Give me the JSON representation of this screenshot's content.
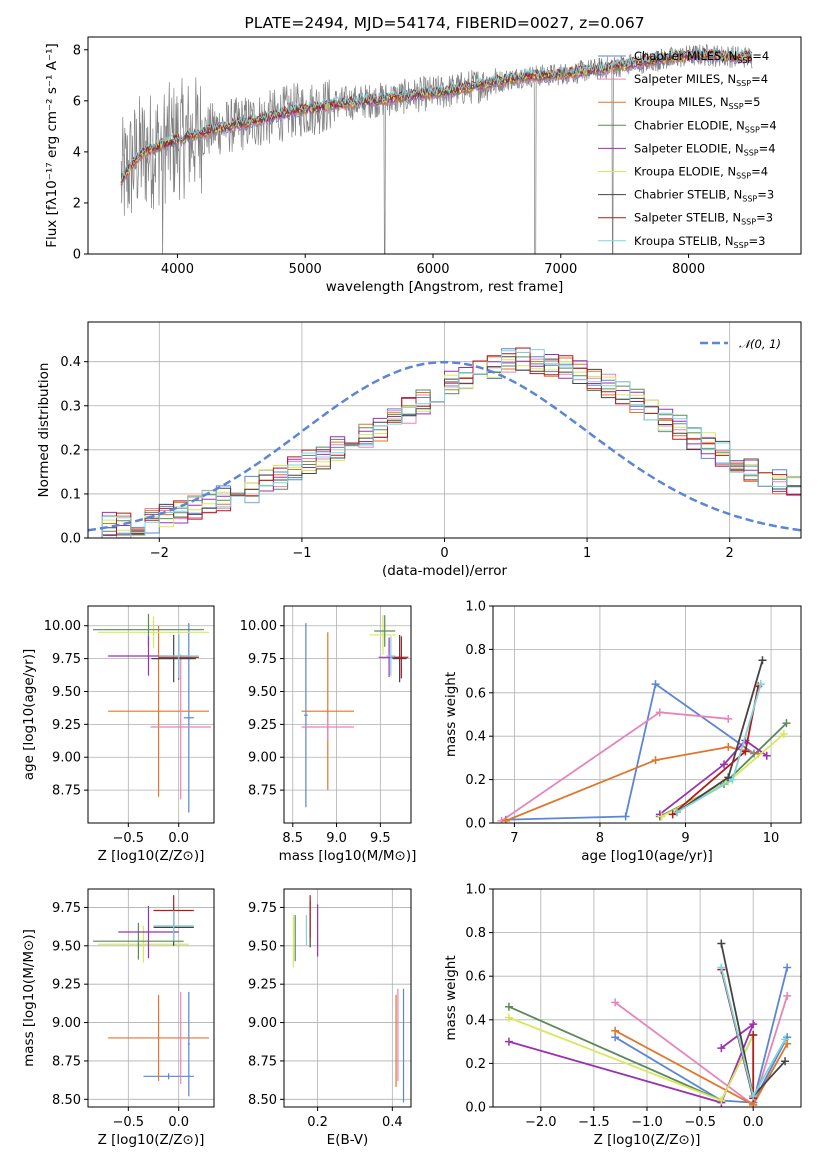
{
  "chart_data": [
    {
      "type": "line",
      "panel": "spectrum",
      "title": "PLATE=2494, MJD=54174, FIBERID=0027, z=0.067",
      "xlabel": "wavelength [Angstrom, rest frame]",
      "ylabel": "Flux [fλ10⁻¹⁷ erg cm⁻² s⁻¹ A⁻¹]",
      "xlim": [
        3300,
        8880
      ],
      "ylim": [
        0,
        8.5
      ],
      "xticks": [
        4000,
        5000,
        6000,
        7000,
        8000
      ],
      "yticks": [
        0,
        2,
        4,
        6,
        8
      ],
      "grid": false,
      "legend_position": "top-right",
      "data_color": "#808080",
      "continuum": {
        "x": [
          3560,
          3700,
          3900,
          4100,
          4300,
          4500,
          4700,
          4900,
          5100,
          5300,
          5500,
          5700,
          5900,
          6100,
          6300,
          6500,
          6700,
          6900,
          7100,
          7300,
          7500,
          7700,
          7900,
          8100,
          8300,
          8500
        ],
        "y": [
          2.9,
          3.9,
          4.3,
          4.6,
          4.9,
          5.1,
          5.3,
          5.6,
          5.75,
          5.9,
          6.0,
          6.1,
          6.25,
          6.35,
          6.55,
          6.75,
          6.95,
          7.0,
          7.1,
          7.25,
          7.4,
          7.55,
          7.7,
          7.8,
          7.75,
          7.7
        ]
      },
      "series": [
        {
          "name": "Chabrier MILES, N_SSP=4",
          "label_main": "Chabrier MILES, N",
          "label_sub": "SSP",
          "label_tail": "=4",
          "color": "#5b86d6"
        },
        {
          "name": "Salpeter MILES, N_SSP=4",
          "label_main": "Salpeter MILES, N",
          "label_sub": "SSP",
          "label_tail": "=4",
          "color": "#e685b8"
        },
        {
          "name": "Kroupa MILES, N_SSP=5",
          "label_main": "Kroupa MILES, N",
          "label_sub": "SSP",
          "label_tail": "=5",
          "color": "#e0762a"
        },
        {
          "name": "Chabrier ELODIE, N_SSP=4",
          "label_main": "Chabrier ELODIE, N",
          "label_sub": "SSP",
          "label_tail": "=4",
          "color": "#5a8a5a"
        },
        {
          "name": "Salpeter ELODIE, N_SSP=4",
          "label_main": "Salpeter ELODIE, N",
          "label_sub": "SSP",
          "label_tail": "=4",
          "color": "#9b30b0"
        },
        {
          "name": "Kroupa ELODIE, N_SSP=4",
          "label_main": "Kroupa ELODIE, N",
          "label_sub": "SSP",
          "label_tail": "=4",
          "color": "#d8e85a"
        },
        {
          "name": "Chabrier STELIB, N_SSP=3",
          "label_main": "Chabrier STELIB, N",
          "label_sub": "SSP",
          "label_tail": "=3",
          "color": "#444444"
        },
        {
          "name": "Salpeter STELIB, N_SSP=3",
          "label_main": "Salpeter STELIB, N",
          "label_sub": "SSP",
          "label_tail": "=3",
          "color": "#b01c1c"
        },
        {
          "name": "Kroupa STELIB, N_SSP=3",
          "label_main": "Kroupa STELIB, N",
          "label_sub": "SSP",
          "label_tail": "=3",
          "color": "#7fd4dc"
        }
      ]
    },
    {
      "type": "histogram",
      "panel": "residuals",
      "xlabel": "(data-model)/error",
      "ylabel": "Normed distribution",
      "xlim": [
        -2.5,
        2.5
      ],
      "ylim": [
        0,
        0.49
      ],
      "xticks": [
        -2,
        -1,
        0,
        1,
        2
      ],
      "yticks": [
        0.0,
        0.1,
        0.2,
        0.3,
        0.4
      ],
      "grid": true,
      "legend_position": "top-right",
      "reference_curve": {
        "name": "N(0,1)",
        "label": "𝒩(0, 1)",
        "color": "#5b86d6",
        "style": "dashed"
      },
      "bin_edges_start": -2.5,
      "bin_width": 0.1,
      "base_values": [
        0.025,
        0.03,
        0.03,
        0.035,
        0.04,
        0.05,
        0.06,
        0.07,
        0.08,
        0.09,
        0.1,
        0.11,
        0.125,
        0.14,
        0.155,
        0.17,
        0.185,
        0.2,
        0.215,
        0.235,
        0.25,
        0.27,
        0.29,
        0.31,
        0.33,
        0.35,
        0.365,
        0.38,
        0.39,
        0.4,
        0.405,
        0.4,
        0.395,
        0.385,
        0.375,
        0.36,
        0.345,
        0.33,
        0.31,
        0.29,
        0.27,
        0.25,
        0.23,
        0.21,
        0.19,
        0.17,
        0.155,
        0.14,
        0.125,
        0.11
      ]
    },
    {
      "type": "errorbar",
      "panel": "age-vs-Z",
      "xlabel": "Z [log10(Z/Z⊙)]",
      "ylabel": "age [log10(age/yr)]",
      "xlim": [
        -0.9,
        0.35
      ],
      "ylim": [
        8.5,
        10.15
      ],
      "xticks": [
        -0.5,
        0.0
      ],
      "yticks": [
        8.75,
        9.0,
        9.25,
        9.5,
        9.75,
        10.0
      ],
      "grid": true,
      "points": [
        {
          "series": "Chabrier MILES",
          "x": 0.1,
          "xerr": 0.05,
          "y": 9.3,
          "yerr": 0.72
        },
        {
          "series": "Kroupa MILES",
          "x": -0.2,
          "xerr": 0.5,
          "y": 9.35,
          "yerr": 0.65
        },
        {
          "series": "Salpeter MILES",
          "x": 0.02,
          "xerr": 0.3,
          "y": 9.23,
          "yerr": 0.55
        },
        {
          "series": "Kroupa ELODIE",
          "x": -0.25,
          "xerr": 0.55,
          "y": 9.95,
          "yerr": 0.12
        },
        {
          "series": "Chabrier ELODIE",
          "x": -0.3,
          "xerr": 0.55,
          "y": 9.97,
          "yerr": 0.12
        },
        {
          "series": "Salpeter ELODIE",
          "x": -0.3,
          "xerr": 0.4,
          "y": 9.77,
          "yerr": 0.15
        },
        {
          "series": "Chabrier STELIB",
          "x": -0.05,
          "xerr": 0.22,
          "y": 9.75,
          "yerr": 0.18
        },
        {
          "series": "Salpeter STELIB",
          "x": 0.0,
          "xerr": 0.2,
          "y": 9.76,
          "yerr": 0.17
        },
        {
          "series": "Kroupa STELIB",
          "x": 0.0,
          "xerr": 0.2,
          "y": 9.77,
          "yerr": 0.17
        }
      ]
    },
    {
      "type": "errorbar",
      "panel": "age-vs-mass",
      "xlabel": "mass [log10(M/M⊙)]",
      "ylabel": "",
      "xlim": [
        8.4,
        9.85
      ],
      "ylim": [
        8.5,
        10.15
      ],
      "xticks": [
        8.5,
        9.0,
        9.5
      ],
      "yticks": [
        8.75,
        9.0,
        9.25,
        9.5,
        9.75,
        10.0
      ],
      "grid": true,
      "points": [
        {
          "series": "Chabrier MILES",
          "x": 8.65,
          "xerr": 0.02,
          "y": 9.32,
          "yerr": 0.7
        },
        {
          "series": "Kroupa MILES",
          "x": 8.9,
          "xerr": 0.3,
          "y": 9.35,
          "yerr": 0.6
        },
        {
          "series": "Salpeter MILES",
          "x": 8.9,
          "xerr": 0.3,
          "y": 9.23,
          "yerr": 0.1
        },
        {
          "series": "Kroupa ELODIE",
          "x": 9.53,
          "xerr": 0.15,
          "y": 9.93,
          "yerr": 0.15
        },
        {
          "series": "Chabrier ELODIE",
          "x": 9.55,
          "xerr": 0.12,
          "y": 9.96,
          "yerr": 0.12
        },
        {
          "series": "Salpeter ELODIE",
          "x": 9.6,
          "xerr": 0.12,
          "y": 9.76,
          "yerr": 0.15
        },
        {
          "series": "Chabrier STELIB",
          "x": 9.72,
          "xerr": 0.08,
          "y": 9.75,
          "yerr": 0.18
        },
        {
          "series": "Salpeter STELIB",
          "x": 9.74,
          "xerr": 0.08,
          "y": 9.76,
          "yerr": 0.16
        },
        {
          "series": "Kroupa STELIB",
          "x": 9.62,
          "xerr": 0.05,
          "y": 9.77,
          "yerr": 0.15
        }
      ]
    },
    {
      "type": "line",
      "panel": "mass-weight-vs-age",
      "xlabel": "age [log10(age/yr)]",
      "ylabel": "mass weight",
      "xlim": [
        6.75,
        10.35
      ],
      "ylim": [
        0,
        1.0
      ],
      "xticks": [
        7,
        8,
        9,
        10
      ],
      "yticks": [
        0.0,
        0.2,
        0.4,
        0.6,
        0.8,
        1.0
      ],
      "grid": true,
      "marker": "+",
      "series": [
        {
          "name": "Chabrier MILES",
          "x": [
            6.9,
            8.3,
            8.65,
            9.8
          ],
          "y": [
            0.015,
            0.03,
            0.64,
            0.32
          ]
        },
        {
          "name": "Salpeter MILES",
          "x": [
            6.85,
            8.7,
            9.5
          ],
          "y": [
            0.01,
            0.51,
            0.48
          ]
        },
        {
          "name": "Kroupa MILES",
          "x": [
            6.9,
            8.65,
            9.5,
            9.85
          ],
          "y": [
            0.01,
            0.29,
            0.35,
            0.32
          ]
        },
        {
          "name": "Chabrier ELODIE",
          "x": [
            8.7,
            9.45,
            10.18
          ],
          "y": [
            0.03,
            0.18,
            0.46
          ]
        },
        {
          "name": "Salpeter ELODIE",
          "x": [
            8.7,
            9.45,
            9.7,
            9.95
          ],
          "y": [
            0.04,
            0.27,
            0.38,
            0.31
          ]
        },
        {
          "name": "Kroupa ELODIE",
          "x": [
            8.72,
            9.5,
            10.15
          ],
          "y": [
            0.03,
            0.19,
            0.41
          ]
        },
        {
          "name": "Chabrier STELIB",
          "x": [
            8.9,
            9.5,
            9.9
          ],
          "y": [
            0.05,
            0.21,
            0.75
          ]
        },
        {
          "name": "Salpeter STELIB",
          "x": [
            8.85,
            9.7,
            9.85
          ],
          "y": [
            0.04,
            0.33,
            0.63
          ]
        },
        {
          "name": "Kroupa STELIB",
          "x": [
            8.9,
            9.55,
            9.88
          ],
          "y": [
            0.05,
            0.2,
            0.64
          ]
        }
      ]
    },
    {
      "type": "errorbar",
      "panel": "mass-vs-Z",
      "xlabel": "Z [log10(Z/Z⊙)]",
      "ylabel": "mass [log10(M/M⊙)]",
      "xlim": [
        -0.9,
        0.35
      ],
      "ylim": [
        8.45,
        9.87
      ],
      "xticks": [
        -0.5,
        0.0
      ],
      "yticks": [
        8.5,
        8.75,
        9.0,
        9.25,
        9.5,
        9.75
      ],
      "grid": true,
      "points": [
        {
          "series": "Chabrier MILES",
          "x": -0.1,
          "xerr": 0.25,
          "y": 8.65,
          "yerr": 0.02
        },
        {
          "series": "Chabrier MILES",
          "x": 0.1,
          "xerr": 0.01,
          "y": 8.86,
          "yerr": 0.34
        },
        {
          "series": "Kroupa MILES",
          "x": -0.2,
          "xerr": 0.5,
          "y": 8.9,
          "yerr": 0.28
        },
        {
          "series": "Salpeter MILES",
          "x": 0.02,
          "xerr": 0.01,
          "y": 8.9,
          "yerr": 0.3
        },
        {
          "series": "Kroupa ELODIE",
          "x": -0.35,
          "xerr": 0.45,
          "y": 9.51,
          "yerr": 0.12
        },
        {
          "series": "Chabrier ELODIE",
          "x": -0.4,
          "xerr": 0.45,
          "y": 9.53,
          "yerr": 0.12
        },
        {
          "series": "Salpeter ELODIE",
          "x": -0.3,
          "xerr": 0.3,
          "y": 9.59,
          "yerr": 0.17
        },
        {
          "series": "Chabrier STELIB",
          "x": -0.05,
          "xerr": 0.2,
          "y": 9.62,
          "yerr": 0.12
        },
        {
          "series": "Salpeter STELIB",
          "x": -0.05,
          "xerr": 0.2,
          "y": 9.73,
          "yerr": 0.1
        },
        {
          "series": "Kroupa STELIB",
          "x": -0.05,
          "xerr": 0.2,
          "y": 9.63,
          "yerr": 0.1
        }
      ]
    },
    {
      "type": "errorbar",
      "panel": "mass-vs-EBV",
      "xlabel": "E(B-V)",
      "ylabel": "",
      "xlim": [
        0.11,
        0.45
      ],
      "ylim": [
        8.45,
        9.87
      ],
      "xticks": [
        0.2,
        0.4
      ],
      "yticks": [
        8.5,
        8.75,
        9.0,
        9.25,
        9.5,
        9.75
      ],
      "grid": true,
      "points": [
        {
          "series": "Chabrier MILES",
          "x": 0.43,
          "xerr": 0.0,
          "y": 8.85,
          "yerr": 0.37
        },
        {
          "series": "Kroupa MILES",
          "x": 0.41,
          "xerr": 0.0,
          "y": 8.88,
          "yerr": 0.3
        },
        {
          "series": "Salpeter MILES",
          "x": 0.415,
          "xerr": 0.0,
          "y": 8.92,
          "yerr": 0.3
        },
        {
          "series": "Kroupa ELODIE",
          "x": 0.135,
          "xerr": 0.0,
          "y": 9.53,
          "yerr": 0.17
        },
        {
          "series": "Chabrier ELODIE",
          "x": 0.14,
          "xerr": 0.0,
          "y": 9.55,
          "yerr": 0.15
        },
        {
          "series": "Salpeter ELODIE",
          "x": 0.2,
          "xerr": 0.0,
          "y": 9.6,
          "yerr": 0.17
        },
        {
          "series": "Chabrier STELIB",
          "x": 0.18,
          "xerr": 0.0,
          "y": 9.64,
          "yerr": 0.15
        },
        {
          "series": "Salpeter STELIB",
          "x": 0.18,
          "xerr": 0.0,
          "y": 9.69,
          "yerr": 0.14
        },
        {
          "series": "Kroupa STELIB",
          "x": 0.17,
          "xerr": 0.0,
          "y": 9.6,
          "yerr": 0.1
        }
      ]
    },
    {
      "type": "line",
      "panel": "mass-weight-vs-Z",
      "xlabel": "Z [log10(Z/Z⊙)]",
      "ylabel": "mass weight",
      "xlim": [
        -2.45,
        0.45
      ],
      "ylim": [
        0,
        1.0
      ],
      "xticks": [
        -2.0,
        -1.5,
        -1.0,
        -0.5,
        0.0
      ],
      "yticks": [
        0.0,
        0.2,
        0.4,
        0.6,
        0.8,
        1.0
      ],
      "grid": true,
      "marker": "+",
      "series": [
        {
          "name": "Chabrier MILES",
          "x": [
            -1.3,
            -0.3,
            0.0,
            0.32,
            0.0,
            0.32
          ],
          "y": [
            0.32,
            0.03,
            0.02,
            0.64,
            0.02,
            0.32
          ]
        },
        {
          "name": "Salpeter MILES",
          "x": [
            -1.3,
            0.0,
            0.32
          ],
          "y": [
            0.48,
            0.01,
            0.51
          ]
        },
        {
          "name": "Kroupa MILES",
          "x": [
            -1.3,
            0.0,
            0.32
          ],
          "y": [
            0.35,
            0.01,
            0.29
          ]
        },
        {
          "name": "Chabrier ELODIE",
          "x": [
            -2.3,
            -0.3,
            0.0
          ],
          "y": [
            0.46,
            0.03,
            0.33
          ]
        },
        {
          "name": "Salpeter ELODIE",
          "x": [
            -2.3,
            -0.3,
            0.0,
            -0.3
          ],
          "y": [
            0.3,
            0.02,
            0.38,
            0.27
          ]
        },
        {
          "name": "Kroupa ELODIE",
          "x": [
            -2.3,
            -0.3,
            0.0
          ],
          "y": [
            0.41,
            0.03,
            0.33
          ]
        },
        {
          "name": "Chabrier STELIB",
          "x": [
            -0.3,
            0.0,
            0.3
          ],
          "y": [
            0.75,
            0.05,
            0.21
          ]
        },
        {
          "name": "Salpeter STELIB",
          "x": [
            -0.3,
            0.0,
            0.0
          ],
          "y": [
            0.63,
            0.04,
            0.33
          ]
        },
        {
          "name": "Kroupa STELIB",
          "x": [
            -0.3,
            0.0,
            0.3
          ],
          "y": [
            0.64,
            0.05,
            0.31
          ]
        }
      ]
    }
  ]
}
